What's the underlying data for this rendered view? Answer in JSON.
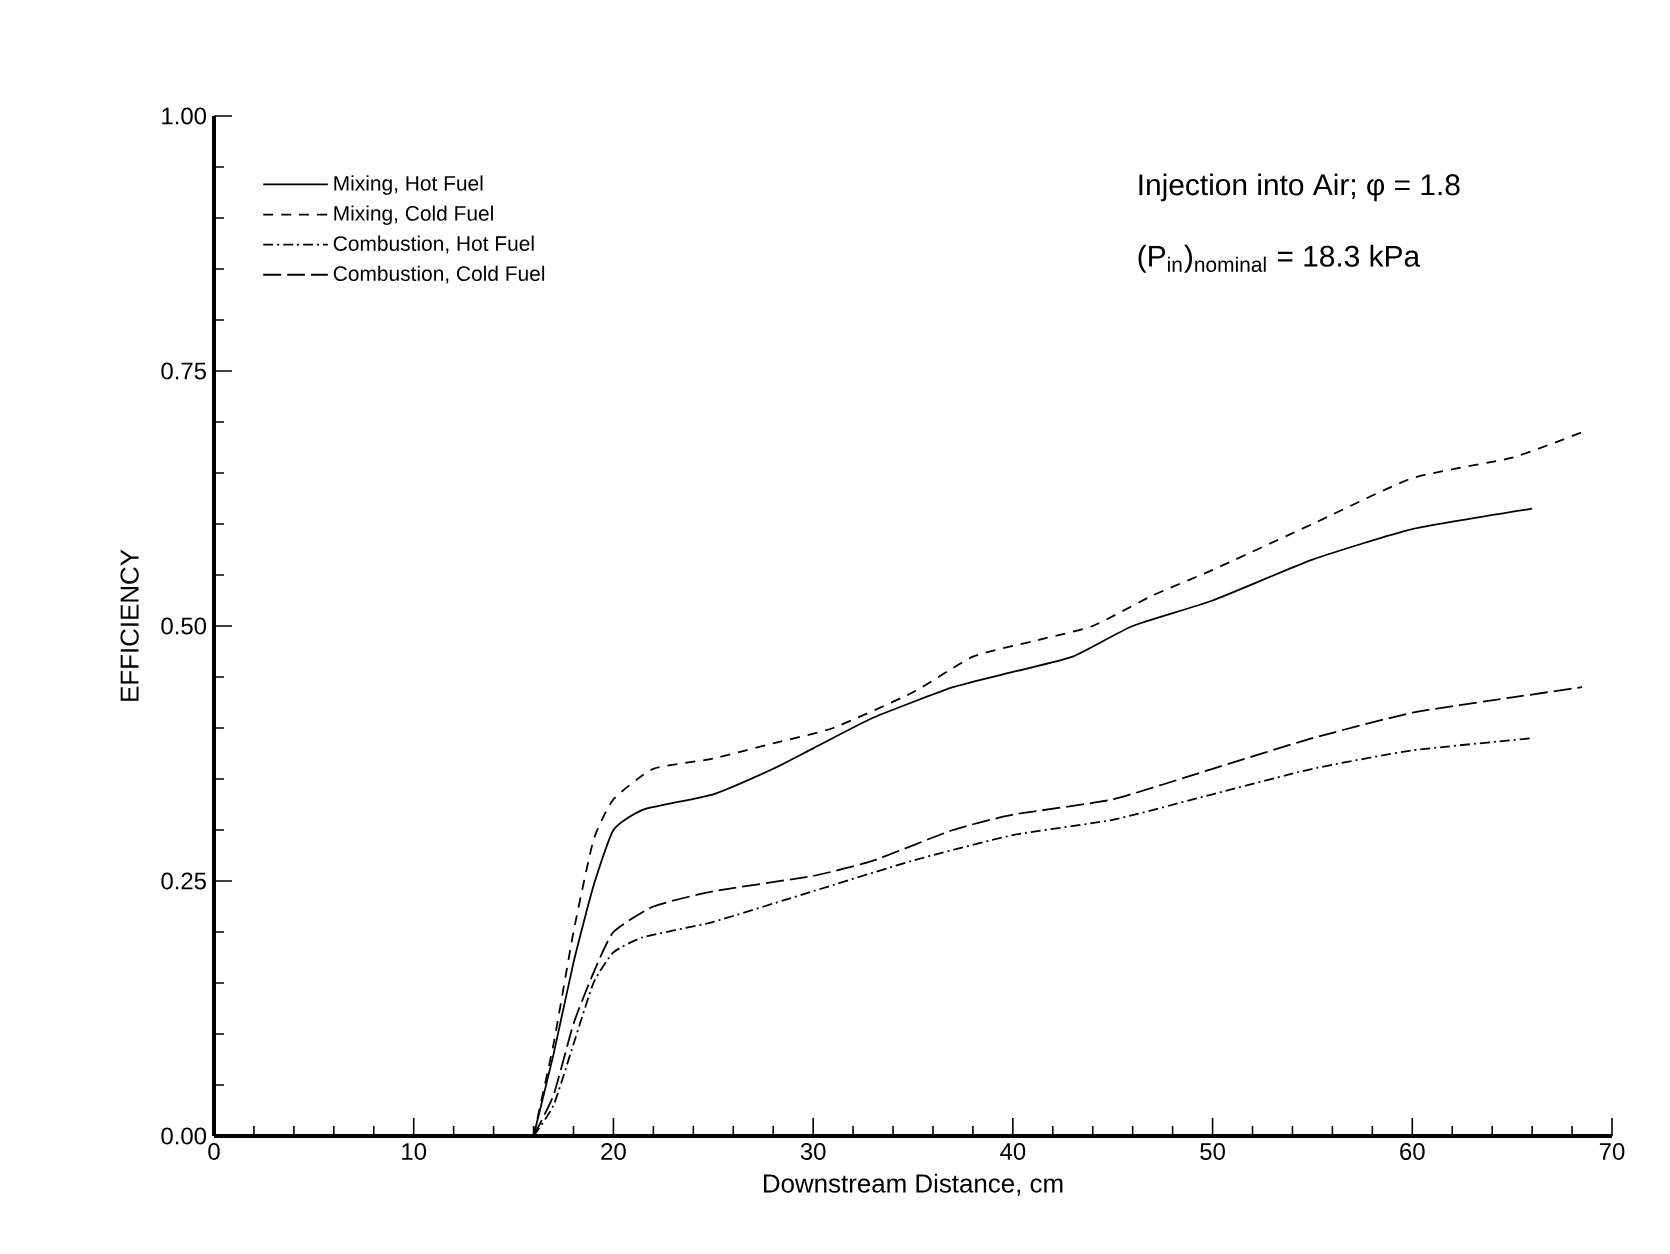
{
  "chart_data": {
    "type": "line",
    "xlabel": "Downstream Distance, cm",
    "ylabel": "EFFICIENCY",
    "annotations": [
      "Injection into Air; φ = 1.8",
      "(P$_{in}$)$_{nominal}$ = 18.3 kPa"
    ],
    "xlim": [
      0,
      70
    ],
    "xticks": [
      0,
      10,
      20,
      30,
      40,
      50,
      60,
      70
    ],
    "ylim": [
      0,
      1
    ],
    "yticks": [
      {
        "value": 0,
        "label": "0.00"
      },
      {
        "value": 0.25,
        "label": "0.25"
      },
      {
        "value": 0.5,
        "label": "0.50"
      },
      {
        "value": 0.75,
        "label": "0.75"
      },
      {
        "value": 1,
        "label": "1.00"
      }
    ],
    "grid": false,
    "legend": "top left",
    "marker": "none",
    "series": [
      {
        "name": "Mixing, Hot Fuel",
        "color": "#000000",
        "line_style": "solid",
        "x": [
          16,
          17,
          18,
          19,
          20,
          21.5,
          25,
          28,
          30,
          33,
          37,
          40,
          43,
          46,
          50,
          55,
          60,
          66
        ],
        "values": [
          0,
          0.08,
          0.17,
          0.245,
          0.3,
          0.32,
          0.335,
          0.36,
          0.38,
          0.41,
          0.44,
          0.455,
          0.47,
          0.5,
          0.525,
          0.565,
          0.595,
          0.615
        ]
      },
      {
        "name": "Mixing, Cold Fuel",
        "color": "#000000",
        "line_style": "dashed",
        "x": [
          16,
          17,
          18,
          19,
          20,
          22,
          25,
          28,
          31,
          35,
          38,
          41,
          44,
          47,
          50,
          55,
          60,
          65,
          68.5
        ],
        "values": [
          0,
          0.09,
          0.2,
          0.29,
          0.33,
          0.36,
          0.37,
          0.385,
          0.4,
          0.435,
          0.47,
          0.485,
          0.5,
          0.53,
          0.555,
          0.6,
          0.645,
          0.665,
          0.69
        ]
      },
      {
        "name": "Combustion, Hot Fuel",
        "color": "#000000",
        "line_style": "dashdot",
        "x": [
          16,
          17,
          18,
          19,
          20,
          21.5,
          25,
          30,
          35,
          40,
          45,
          50,
          55,
          60,
          66
        ],
        "values": [
          0,
          0.03,
          0.09,
          0.15,
          0.18,
          0.195,
          0.21,
          0.24,
          0.27,
          0.295,
          0.31,
          0.335,
          0.36,
          0.378,
          0.39
        ]
      },
      {
        "name": "Combustion, Cold Fuel",
        "color": "#000000",
        "line_style": "longdash",
        "x": [
          16,
          17,
          18,
          19,
          20,
          22,
          25,
          30,
          33,
          37,
          40,
          45,
          50,
          55,
          60,
          65,
          68.5
        ],
        "values": [
          0,
          0.04,
          0.11,
          0.16,
          0.2,
          0.225,
          0.24,
          0.255,
          0.27,
          0.3,
          0.315,
          0.33,
          0.36,
          0.39,
          0.415,
          0.43,
          0.44
        ]
      }
    ]
  }
}
